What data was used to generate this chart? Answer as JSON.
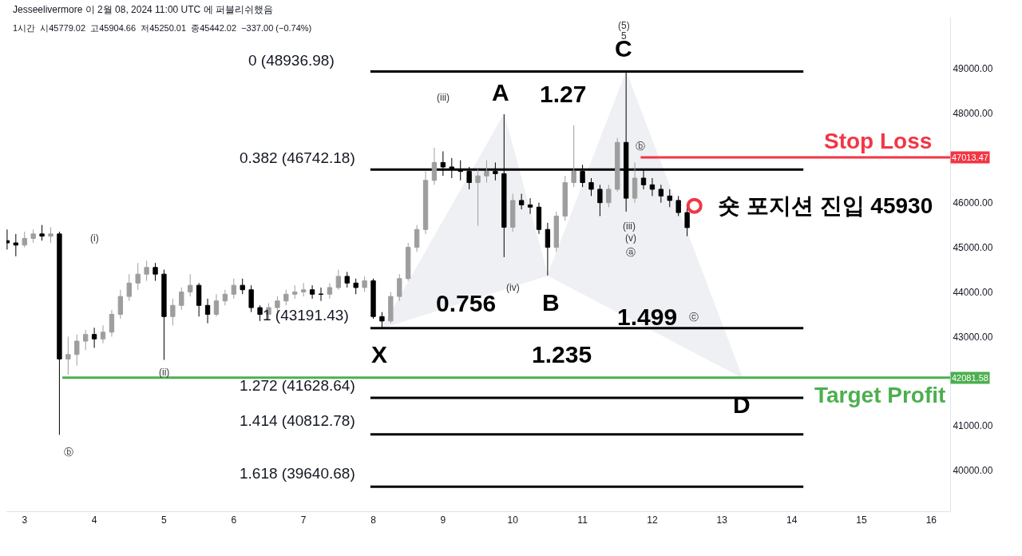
{
  "chart_data": {
    "type": "candlestick",
    "title": "Jesseelivermore 이 2월 08, 2024 11:00 UTC 에 퍼블리쉬했음",
    "subtitle": "1시간  시45779.02  고45904.66  저45250.01  종45442.02  −337.00 (−0.74%)",
    "x": [
      "2024-02-02T18:00",
      "2024-02-02T21:00",
      "2024-02-03T00:00",
      "2024-02-03T03:00",
      "2024-02-03T06:00",
      "2024-02-03T09:00",
      "2024-02-03T12:00",
      "2024-02-03T15:00",
      "2024-02-03T18:00",
      "2024-02-03T21:00",
      "2024-02-04T00:00",
      "2024-02-04T03:00",
      "2024-02-04T06:00",
      "2024-02-04T09:00",
      "2024-02-04T12:00",
      "2024-02-04T15:00",
      "2024-02-04T18:00",
      "2024-02-04T21:00",
      "2024-02-05T00:00",
      "2024-02-05T03:00",
      "2024-02-05T06:00",
      "2024-02-05T09:00",
      "2024-02-05T12:00",
      "2024-02-05T15:00",
      "2024-02-05T18:00",
      "2024-02-05T21:00",
      "2024-02-06T00:00",
      "2024-02-06T03:00",
      "2024-02-06T06:00",
      "2024-02-06T09:00",
      "2024-02-06T12:00",
      "2024-02-06T15:00",
      "2024-02-06T18:00",
      "2024-02-06T21:00",
      "2024-02-07T00:00",
      "2024-02-07T03:00",
      "2024-02-07T06:00",
      "2024-02-07T09:00",
      "2024-02-07T12:00",
      "2024-02-07T15:00",
      "2024-02-07T18:00",
      "2024-02-07T21:00",
      "2024-02-08T00:00",
      "2024-02-08T03:00",
      "2024-02-08T06:00",
      "2024-02-08T09:00",
      "2024-02-08T12:00",
      "2024-02-08T15:00",
      "2024-02-08T18:00",
      "2024-02-08T21:00",
      "2024-02-09T00:00",
      "2024-02-09T03:00",
      "2024-02-09T06:00",
      "2024-02-09T09:00",
      "2024-02-09T12:00",
      "2024-02-09T15:00",
      "2024-02-09T18:00",
      "2024-02-09T21:00",
      "2024-02-10T00:00",
      "2024-02-10T03:00",
      "2024-02-10T06:00",
      "2024-02-10T09:00",
      "2024-02-10T12:00",
      "2024-02-10T15:00",
      "2024-02-10T18:00",
      "2024-02-10T21:00",
      "2024-02-11T00:00",
      "2024-02-11T03:00",
      "2024-02-11T06:00",
      "2024-02-11T09:00",
      "2024-02-11T12:00",
      "2024-02-11T15:00",
      "2024-02-11T18:00",
      "2024-02-11T21:00",
      "2024-02-12T00:00",
      "2024-02-12T03:00",
      "2024-02-12T06:00",
      "2024-02-12T09:00",
      "2024-02-12T12:00"
    ],
    "ohlc": [
      [
        45150,
        45400,
        44950,
        45100
      ],
      [
        45100,
        45300,
        44800,
        45050
      ],
      [
        45050,
        45350,
        45000,
        45200
      ],
      [
        45200,
        45400,
        45100,
        45300
      ],
      [
        45300,
        45500,
        45150,
        45250
      ],
      [
        45250,
        45450,
        45100,
        45300
      ],
      [
        45300,
        45350,
        40800,
        42500
      ],
      [
        42500,
        43000,
        42150,
        42600
      ],
      [
        42600,
        43050,
        42350,
        42900
      ],
      [
        42900,
        43150,
        42700,
        43050
      ],
      [
        43050,
        43200,
        42750,
        42950
      ],
      [
        42950,
        43250,
        42850,
        43100
      ],
      [
        43100,
        43600,
        43000,
        43500
      ],
      [
        43500,
        44050,
        43400,
        43900
      ],
      [
        43900,
        44400,
        43800,
        44200
      ],
      [
        44200,
        44650,
        44050,
        44400
      ],
      [
        44400,
        44700,
        44250,
        44550
      ],
      [
        44550,
        44650,
        44250,
        44400
      ],
      [
        44400,
        44500,
        42480,
        43450
      ],
      [
        43450,
        43850,
        43250,
        43700
      ],
      [
        43700,
        44100,
        43600,
        44000
      ],
      [
        44000,
        44400,
        43900,
        44150
      ],
      [
        44150,
        44200,
        43450,
        43700
      ],
      [
        43700,
        43850,
        43300,
        43500
      ],
      [
        43500,
        43950,
        43450,
        43800
      ],
      [
        43800,
        44050,
        43700,
        43950
      ],
      [
        43950,
        44300,
        43850,
        44150
      ],
      [
        44150,
        44300,
        43950,
        44050
      ],
      [
        44050,
        44150,
        43550,
        43650
      ],
      [
        43650,
        43700,
        43350,
        43500
      ],
      [
        43500,
        43750,
        43400,
        43650
      ],
      [
        43650,
        43900,
        43550,
        43800
      ],
      [
        43800,
        44050,
        43700,
        43950
      ],
      [
        43950,
        44150,
        43850,
        44000
      ],
      [
        44000,
        44200,
        43900,
        44050
      ],
      [
        44050,
        44150,
        43850,
        43950
      ],
      [
        43950,
        44100,
        43800,
        43950
      ],
      [
        43950,
        44200,
        43850,
        44100
      ],
      [
        44100,
        44500,
        44050,
        44350
      ],
      [
        44350,
        44450,
        44100,
        44200
      ],
      [
        44200,
        44300,
        43950,
        44100
      ],
      [
        44100,
        44350,
        44000,
        44250
      ],
      [
        44250,
        44300,
        43400,
        43450
      ],
      [
        43450,
        43550,
        43191,
        43350
      ],
      [
        43350,
        44000,
        43300,
        43900
      ],
      [
        43900,
        44400,
        43800,
        44300
      ],
      [
        44300,
        45100,
        44250,
        45000
      ],
      [
        45000,
        45500,
        44900,
        45400
      ],
      [
        45400,
        46700,
        45300,
        46500
      ],
      [
        46500,
        47230,
        46400,
        46900
      ],
      [
        46900,
        47150,
        46600,
        46800
      ],
      [
        46800,
        47000,
        46550,
        46750
      ],
      [
        46750,
        46950,
        46500,
        46700
      ],
      [
        46700,
        46800,
        46300,
        46450
      ],
      [
        46450,
        46750,
        45480,
        46600
      ],
      [
        46600,
        46950,
        46450,
        46700
      ],
      [
        46700,
        46900,
        46500,
        46650
      ],
      [
        46650,
        47980,
        44780,
        45450
      ],
      [
        45450,
        46200,
        45350,
        46050
      ],
      [
        46050,
        46200,
        45850,
        45950
      ],
      [
        45950,
        46100,
        45750,
        45900
      ],
      [
        45900,
        46000,
        45300,
        45400
      ],
      [
        45400,
        45550,
        44370,
        45000
      ],
      [
        45000,
        45800,
        44900,
        45700
      ],
      [
        45700,
        46600,
        45600,
        46450
      ],
      [
        46450,
        47730,
        46350,
        46700
      ],
      [
        46700,
        46850,
        46350,
        46450
      ],
      [
        46450,
        46550,
        46150,
        46300
      ],
      [
        46300,
        46400,
        45700,
        46000
      ],
      [
        46000,
        46400,
        45900,
        46300
      ],
      [
        46300,
        47450,
        46250,
        47350
      ],
      [
        47350,
        48930,
        45800,
        46100
      ],
      [
        46100,
        46900,
        46000,
        46550
      ],
      [
        46550,
        46750,
        46300,
        46400
      ],
      [
        46400,
        46550,
        46150,
        46300
      ],
      [
        46300,
        46400,
        46000,
        46150
      ],
      [
        46150,
        46300,
        45900,
        46050
      ],
      [
        46050,
        46150,
        45700,
        45779.02
      ],
      [
        45779.02,
        45904.66,
        45250.01,
        45442.02
      ]
    ],
    "series": [
      {
        "type": "area",
        "color": "#eceef1",
        "x": [
          "2024-02-08T03:00",
          "2024-02-09T21:00",
          "2024-02-10T12:00"
        ],
        "values": [
          43191.43,
          47980,
          44370
        ]
      },
      {
        "type": "area",
        "color": "#eceef1",
        "x": [
          "2024-02-10T12:00",
          "2024-02-11T15:00",
          "2024-02-13T07:00"
        ],
        "values": [
          44370,
          48930,
          42081.58
        ]
      },
      {
        "type": "line",
        "color": "#000000",
        "x": [
          "2024-02-07T23:00",
          "2024-02-14T04:00"
        ],
        "values": [
          48936.98,
          48936.98
        ]
      },
      {
        "type": "line",
        "color": "#000000",
        "x": [
          "2024-02-07T23:00",
          "2024-02-14T04:00"
        ],
        "values": [
          46742.18,
          46742.18
        ]
      },
      {
        "type": "line",
        "color": "#000000",
        "x": [
          "2024-02-07T23:00",
          "2024-02-14T04:00"
        ],
        "values": [
          43191.43,
          43191.43
        ]
      },
      {
        "type": "line",
        "color": "#000000",
        "x": [
          "2024-02-07T23:00",
          "2024-02-14T04:00"
        ],
        "values": [
          41628.64,
          41628.64
        ]
      },
      {
        "type": "line",
        "color": "#000000",
        "x": [
          "2024-02-07T23:00",
          "2024-02-14T04:00"
        ],
        "values": [
          40812.78,
          40812.78
        ]
      },
      {
        "type": "line",
        "color": "#000000",
        "x": [
          "2024-02-07T23:00",
          "2024-02-14T04:00"
        ],
        "values": [
          39640.68,
          39640.68
        ]
      },
      {
        "type": "line",
        "name": "47013.47",
        "color": "#f23645",
        "x": [
          "2024-02-11T20:00",
          "2024-02-16T06:30"
        ],
        "values": [
          47013.47,
          47013.47
        ]
      },
      {
        "type": "line",
        "name": "42081.58",
        "color": "#4caf50",
        "x": [
          "2024-02-03T13:00",
          "2024-02-16T06:30"
        ],
        "values": [
          42081.58,
          42081.58
        ]
      },
      {
        "type": "scatter",
        "color": "#f23645",
        "marker": "circle",
        "x": [
          "2024-02-12T14:30"
        ],
        "values": [
          45930
        ]
      }
    ],
    "annotations": [
      "A",
      "B",
      "C",
      "D",
      "X",
      "1.27",
      "0.756",
      "1.235",
      "1.499",
      "0 (48936.98)",
      "0.382 (46742.18)",
      "1 (43191.43)",
      "1.272 (41628.64)",
      "1.414 (40812.78)",
      "1.618 (39640.68)",
      "Stop Loss",
      "Target Profit",
      "숏 포지션 진입 45930",
      "(iii)",
      "(iv)",
      "(i)",
      "(ii)",
      "ⓑ",
      "(iii)",
      "(v)",
      "ⓐ",
      "ⓑ",
      "ⓒ",
      "(5)",
      "5"
    ],
    "xlim": [
      "2024-02-02T17:45",
      "2024-02-16T06:30"
    ],
    "xticks": [
      {
        "value": "2024-02-03",
        "label": "3"
      },
      {
        "value": "2024-02-04",
        "label": "4"
      },
      {
        "value": "2024-02-05",
        "label": "5"
      },
      {
        "value": "2024-02-06",
        "label": "6"
      },
      {
        "value": "2024-02-07",
        "label": "7"
      },
      {
        "value": "2024-02-08",
        "label": "8"
      },
      {
        "value": "2024-02-09",
        "label": "9"
      },
      {
        "value": "2024-02-10",
        "label": "10"
      },
      {
        "value": "2024-02-11",
        "label": "11"
      },
      {
        "value": "2024-02-12",
        "label": "12"
      },
      {
        "value": "2024-02-13",
        "label": "13"
      },
      {
        "value": "2024-02-14",
        "label": "14"
      },
      {
        "value": "2024-02-15",
        "label": "15"
      },
      {
        "value": "2024-02-16",
        "label": "16"
      }
    ],
    "ylim": [
      39090,
      50145
    ],
    "yticks": [
      {
        "value": 40000,
        "label": "40000.00"
      },
      {
        "value": 41000,
        "label": "41000.00"
      },
      {
        "value": 43000,
        "label": "43000.00"
      },
      {
        "value": 44000,
        "label": "44000.00"
      },
      {
        "value": 45000,
        "label": "45000.00"
      },
      {
        "value": 46000,
        "label": "46000.00"
      },
      {
        "value": 48000,
        "label": "48000.00"
      },
      {
        "value": 49000,
        "label": "49000.00"
      }
    ],
    "grid": false
  }
}
